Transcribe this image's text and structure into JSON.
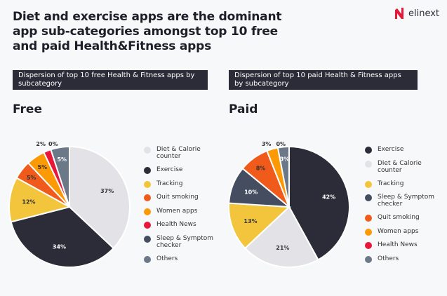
{
  "title": "Diet and exercise apps are the dominant app sub-categories amongst top 10 free and paid Health&Fitness apps",
  "logo": {
    "text": "elinext",
    "color": "#e8173a"
  },
  "colors": {
    "Diet & Calorie counter": "#e3e3e7",
    "Exercise": "#2b2c38",
    "Tracking": "#f2c53d",
    "Quit smoking": "#f05a1a",
    "Women apps": "#fb9a05",
    "Health News": "#e8173a",
    "Sleep & Symptom checker": "#454e61",
    "Others": "#6b7888"
  },
  "chart_data": [
    {
      "type": "pie",
      "header": "Dispersion of top 10 free Health & Fitness apps by subcategory",
      "title": "Free",
      "categories": [
        "Diet & Calorie counter",
        "Exercise",
        "Tracking",
        "Quit smoking",
        "Women apps",
        "Health News",
        "Sleep & Symptom checker",
        "Others"
      ],
      "values": [
        37,
        34,
        12,
        5,
        5,
        2,
        0,
        5
      ],
      "labels": [
        "37%",
        "34%",
        "12%",
        "5%",
        "5%",
        "2%",
        "0%",
        "5%"
      ],
      "legend": [
        "Diet & Calorie\ncounter",
        "Exercise",
        "Tracking",
        "Quit smoking",
        "Women apps",
        "Health News",
        "Sleep & Symptom\nchecker",
        "Others"
      ],
      "legend_placement": "right"
    },
    {
      "type": "pie",
      "header": "Dispersion of top 10 paid Health & Fitness apps by subcategory",
      "title": "Paid",
      "categories": [
        "Exercise",
        "Diet & Calorie counter",
        "Tracking",
        "Sleep & Symptom checker",
        "Quit smoking",
        "Women apps",
        "Health News",
        "Others"
      ],
      "values": [
        42,
        21,
        13,
        10,
        8,
        3,
        0,
        3
      ],
      "labels": [
        "42%",
        "21%",
        "13%",
        "10%",
        "8%",
        "3%",
        "0%",
        "3%"
      ],
      "legend": [
        "Exercise",
        "Diet & Calorie\ncounter",
        "Tracking",
        "Sleep & Symptom\nchecker",
        "Quit smoking",
        "Women apps",
        "Health News",
        "Others"
      ],
      "legend_placement": "right"
    }
  ]
}
